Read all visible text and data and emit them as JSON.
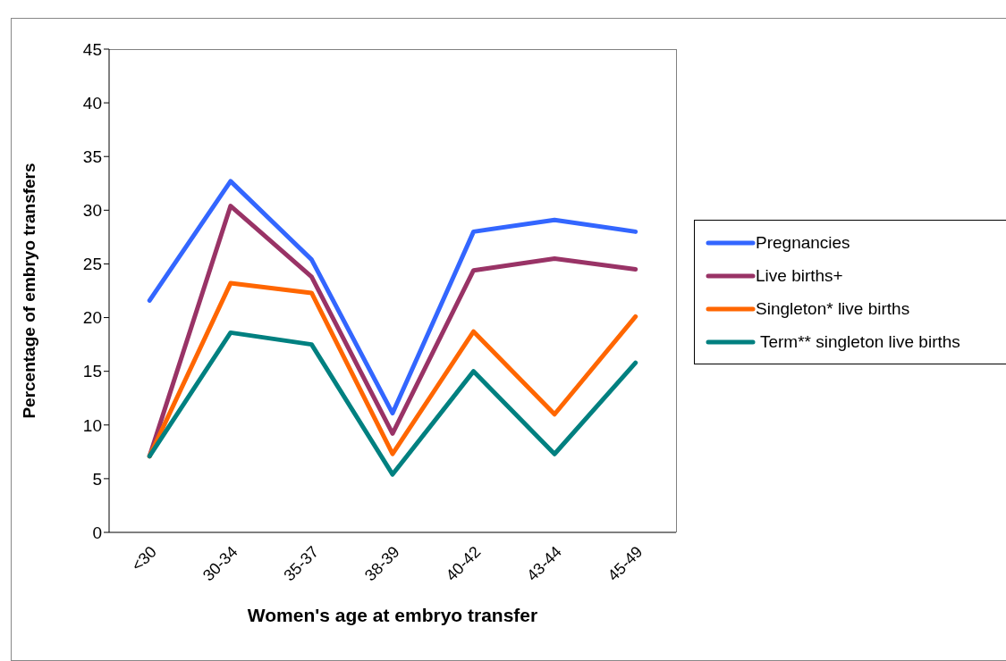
{
  "chart_data": {
    "type": "line",
    "xlabel": "Women's age at embryo transfer",
    "ylabel": "Percentage of embryo transfers",
    "categories": [
      "<30",
      "30-34",
      "35-37",
      "38-39",
      "40-42",
      "43-44",
      "45-49"
    ],
    "series": [
      {
        "name": "Pregnancies",
        "color": "#3366ff",
        "values": [
          21.6,
          32.7,
          25.4,
          11.1,
          28.0,
          29.1,
          28.0
        ]
      },
      {
        "name": "Live births+",
        "color": "#993366",
        "values": [
          7.1,
          30.4,
          23.8,
          9.2,
          24.4,
          25.5,
          24.5
        ]
      },
      {
        "name": "Singleton* live births",
        "color": "#ff6600",
        "values": [
          7.1,
          23.2,
          22.3,
          7.3,
          18.7,
          11.0,
          20.1
        ]
      },
      {
        "name": " Term** singleton live births",
        "color": "#008080",
        "values": [
          7.1,
          18.6,
          17.5,
          5.4,
          15.0,
          7.3,
          15.8
        ]
      }
    ],
    "ylim": [
      0,
      45
    ],
    "yticks": [
      0,
      5,
      10,
      15,
      20,
      25,
      30,
      35,
      40,
      45
    ],
    "legend": "right",
    "marker": "none",
    "line_style": "solid"
  }
}
